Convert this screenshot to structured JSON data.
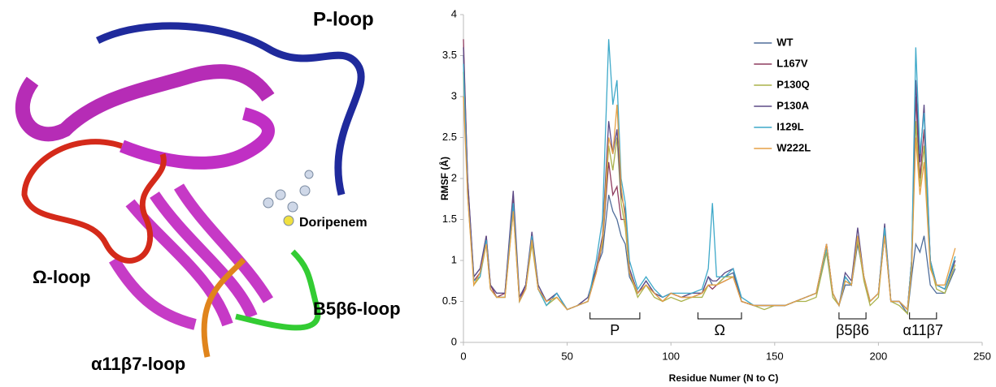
{
  "figure_labels": [
    "P-loop",
    "Doripenem",
    "Ω-loop",
    "B5β6-loop",
    "α11β7-loop"
  ],
  "chart_data": {
    "type": "line",
    "x_label": "Residue Numer (N to C)",
    "y_label": "RMSF (Å)",
    "xlim": [
      0,
      250
    ],
    "xticks": [
      0,
      50,
      100,
      150,
      200,
      250
    ],
    "ylim": [
      0,
      4
    ],
    "yticks": [
      0,
      0.5,
      1,
      1.5,
      2,
      2.5,
      3,
      3.5,
      4
    ],
    "grid": false,
    "legend": "upper center",
    "regions": [
      {
        "label": "P",
        "start": 61,
        "end": 85
      },
      {
        "label": "Ω",
        "start": 113,
        "end": 134
      },
      {
        "label": "β5β6",
        "start": 181,
        "end": 194
      },
      {
        "label": "α11β7",
        "start": 215,
        "end": 228
      }
    ],
    "x": [
      0,
      2,
      5,
      8,
      11,
      13,
      16,
      20,
      24,
      27,
      30,
      33,
      36,
      40,
      45,
      50,
      55,
      60,
      64,
      67,
      70,
      72,
      74,
      76,
      78,
      80,
      84,
      88,
      92,
      96,
      100,
      105,
      110,
      115,
      118,
      120,
      122,
      126,
      130,
      134,
      140,
      145,
      150,
      155,
      160,
      165,
      170,
      175,
      178,
      181,
      184,
      187,
      190,
      193,
      196,
      200,
      203,
      206,
      210,
      214,
      216,
      218,
      220,
      222,
      225,
      228,
      232,
      237
    ],
    "series": [
      {
        "name": "WT",
        "color": "#4f6d9a",
        "values": [
          3.5,
          1.9,
          0.8,
          0.9,
          1.2,
          0.7,
          0.6,
          0.6,
          1.7,
          0.55,
          0.7,
          1.3,
          0.7,
          0.5,
          0.6,
          0.4,
          0.45,
          0.55,
          0.9,
          1.1,
          1.8,
          1.6,
          1.5,
          1.3,
          1.2,
          0.8,
          0.6,
          0.75,
          0.6,
          0.55,
          0.6,
          0.55,
          0.6,
          0.6,
          0.8,
          0.7,
          0.7,
          0.8,
          0.85,
          0.5,
          0.45,
          0.45,
          0.45,
          0.45,
          0.5,
          0.55,
          0.6,
          1.1,
          0.6,
          0.45,
          0.7,
          0.7,
          1.2,
          0.8,
          0.5,
          0.6,
          1.3,
          0.5,
          0.5,
          0.35,
          0.8,
          1.2,
          1.1,
          1.3,
          0.7,
          0.6,
          0.6,
          0.9
        ]
      },
      {
        "name": "L167V",
        "color": "#8e3b5e",
        "values": [
          3.7,
          2.0,
          0.75,
          0.85,
          1.3,
          0.7,
          0.55,
          0.6,
          1.75,
          0.5,
          0.7,
          1.3,
          0.65,
          0.5,
          0.6,
          0.4,
          0.45,
          0.5,
          0.85,
          1.2,
          2.2,
          1.8,
          1.9,
          1.5,
          1.5,
          0.9,
          0.6,
          0.7,
          0.6,
          0.5,
          0.6,
          0.55,
          0.55,
          0.6,
          0.7,
          0.65,
          0.7,
          0.75,
          0.8,
          0.5,
          0.45,
          0.45,
          0.45,
          0.45,
          0.5,
          0.55,
          0.6,
          1.2,
          0.6,
          0.45,
          0.8,
          0.7,
          1.3,
          0.8,
          0.5,
          0.6,
          1.4,
          0.5,
          0.5,
          0.4,
          1.0,
          3.0,
          2.0,
          2.6,
          1.0,
          0.7,
          0.65,
          1.0
        ]
      },
      {
        "name": "P130Q",
        "color": "#aab24a",
        "values": [
          3.3,
          1.9,
          0.7,
          0.8,
          1.2,
          0.65,
          0.55,
          0.55,
          1.6,
          0.5,
          0.65,
          1.2,
          0.65,
          0.45,
          0.55,
          0.4,
          0.45,
          0.5,
          0.9,
          1.2,
          2.4,
          2.1,
          2.5,
          1.7,
          1.4,
          0.85,
          0.55,
          0.7,
          0.55,
          0.5,
          0.55,
          0.5,
          0.55,
          0.55,
          0.7,
          0.7,
          0.7,
          0.8,
          0.8,
          0.5,
          0.45,
          0.4,
          0.45,
          0.45,
          0.5,
          0.5,
          0.55,
          1.1,
          0.55,
          0.45,
          0.75,
          0.7,
          1.25,
          0.75,
          0.45,
          0.55,
          1.35,
          0.5,
          0.45,
          0.35,
          0.9,
          2.7,
          1.9,
          2.4,
          0.95,
          0.65,
          0.6,
          0.95
        ]
      },
      {
        "name": "P130A",
        "color": "#5d4a86",
        "values": [
          3.6,
          2.0,
          0.8,
          0.9,
          1.3,
          0.7,
          0.6,
          0.6,
          1.85,
          0.55,
          0.7,
          1.35,
          0.7,
          0.5,
          0.6,
          0.4,
          0.45,
          0.55,
          0.9,
          1.3,
          2.7,
          2.3,
          2.6,
          1.8,
          1.6,
          0.9,
          0.6,
          0.75,
          0.6,
          0.55,
          0.6,
          0.55,
          0.6,
          0.6,
          0.8,
          0.75,
          0.75,
          0.85,
          0.9,
          0.5,
          0.45,
          0.45,
          0.45,
          0.45,
          0.5,
          0.55,
          0.6,
          1.2,
          0.6,
          0.45,
          0.85,
          0.75,
          1.4,
          0.8,
          0.5,
          0.6,
          1.45,
          0.5,
          0.5,
          0.4,
          1.0,
          3.2,
          2.2,
          2.9,
          1.0,
          0.7,
          0.65,
          1.0
        ]
      },
      {
        "name": "I129L",
        "color": "#3fa9c9",
        "values": [
          3.4,
          1.8,
          0.75,
          0.8,
          1.25,
          0.65,
          0.55,
          0.55,
          1.7,
          0.5,
          0.65,
          1.3,
          0.65,
          0.45,
          0.6,
          0.4,
          0.45,
          0.5,
          1.0,
          1.5,
          3.7,
          2.9,
          3.2,
          2.0,
          1.7,
          1.0,
          0.65,
          0.8,
          0.65,
          0.55,
          0.6,
          0.6,
          0.6,
          0.65,
          0.9,
          1.7,
          0.8,
          0.8,
          0.9,
          0.55,
          0.45,
          0.45,
          0.45,
          0.45,
          0.5,
          0.55,
          0.6,
          1.15,
          0.6,
          0.45,
          0.8,
          0.7,
          1.3,
          0.8,
          0.5,
          0.6,
          1.4,
          0.5,
          0.5,
          0.4,
          1.0,
          3.6,
          2.3,
          2.8,
          1.0,
          0.7,
          0.65,
          1.05
        ]
      },
      {
        "name": "W222L",
        "color": "#e5a046",
        "values": [
          3.0,
          1.8,
          0.7,
          0.85,
          1.2,
          0.65,
          0.55,
          0.55,
          1.6,
          0.5,
          0.65,
          1.25,
          0.65,
          0.5,
          0.55,
          0.4,
          0.45,
          0.5,
          0.85,
          1.25,
          2.5,
          2.3,
          2.9,
          1.9,
          1.5,
          0.85,
          0.6,
          0.7,
          0.6,
          0.5,
          0.6,
          0.55,
          0.55,
          0.6,
          0.7,
          0.7,
          0.7,
          0.75,
          0.8,
          0.5,
          0.45,
          0.45,
          0.45,
          0.45,
          0.5,
          0.55,
          0.6,
          1.2,
          0.6,
          0.45,
          0.75,
          0.7,
          1.3,
          0.8,
          0.5,
          0.6,
          1.3,
          0.5,
          0.5,
          0.4,
          0.9,
          2.5,
          1.8,
          2.2,
          0.9,
          0.7,
          0.7,
          1.15
        ]
      }
    ]
  }
}
